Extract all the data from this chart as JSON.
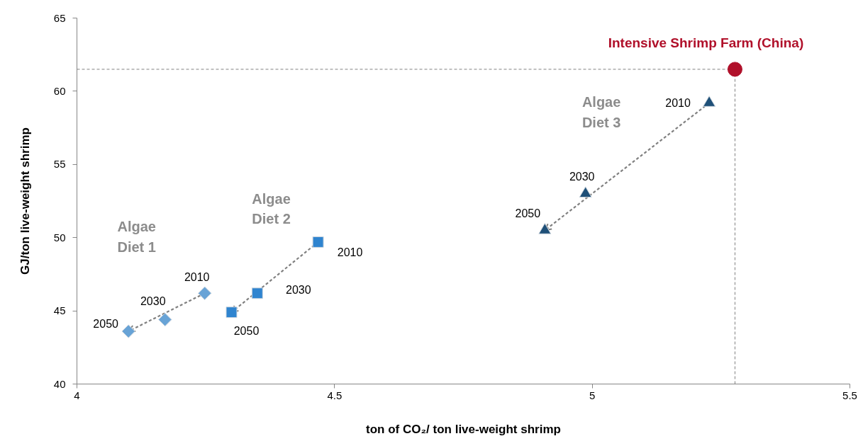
{
  "chart_data": {
    "type": "scatter",
    "xlabel": "ton of CO₂/ ton live-weight shrimp",
    "ylabel": "GJ/ton live-weight shrimp",
    "xlim": [
      4,
      5.5
    ],
    "xticks": [
      4,
      4.5,
      5,
      5.5
    ],
    "ylim": [
      40,
      65
    ],
    "yticks": [
      40,
      45,
      50,
      55,
      60,
      65
    ],
    "grid": false,
    "legend": false,
    "series": [
      {
        "color": "#68a3d6",
        "marker": "diamond",
        "line_style": "dashed",
        "x": [
          4.248,
          4.171,
          4.1
        ],
        "values": [
          46.2,
          44.4,
          43.6
        ]
      },
      {
        "color": "#2f84cf",
        "marker": "square",
        "line_style": "dashed",
        "x": [
          4.468,
          4.35,
          4.3
        ],
        "values": [
          49.7,
          46.2,
          44.9
        ]
      },
      {
        "color": "#1f5078",
        "marker": "triangle",
        "line_style": "dashed",
        "x": [
          5.227,
          4.987,
          4.908
        ],
        "values": [
          59.2,
          53.0,
          50.5
        ]
      },
      {
        "name": "Intensive Shrimp Farm (China)",
        "color": "#b0102a",
        "marker": "circle",
        "x": [
          5.277
        ],
        "values": [
          61.5
        ]
      }
    ],
    "ref_lines": [
      {
        "axis": "y",
        "value": 61.5,
        "color": "#808080",
        "line_style": "dashed"
      },
      {
        "axis": "x",
        "value": 5.277,
        "color": "#808080",
        "line_style": "dashed"
      }
    ],
    "annotations": [
      "Algae Diet 1",
      "Algae Diet 2",
      "Algae Diet 3",
      {
        "text": "2010",
        "x": 4.248,
        "y": 46.2
      },
      {
        "text": "2030",
        "x": 4.171,
        "y": 44.4
      },
      {
        "text": "2050",
        "x": 4.1,
        "y": 43.6
      },
      {
        "text": "2010",
        "x": 4.468,
        "y": 49.7
      },
      {
        "text": "2030",
        "x": 4.35,
        "y": 46.2
      },
      {
        "text": "2050",
        "x": 4.3,
        "y": 44.9
      },
      {
        "text": "2010",
        "x": 5.227,
        "y": 59.2
      },
      {
        "text": "2030",
        "x": 4.987,
        "y": 53.0
      },
      {
        "text": "2050",
        "x": 4.908,
        "y": 50.5
      }
    ]
  }
}
